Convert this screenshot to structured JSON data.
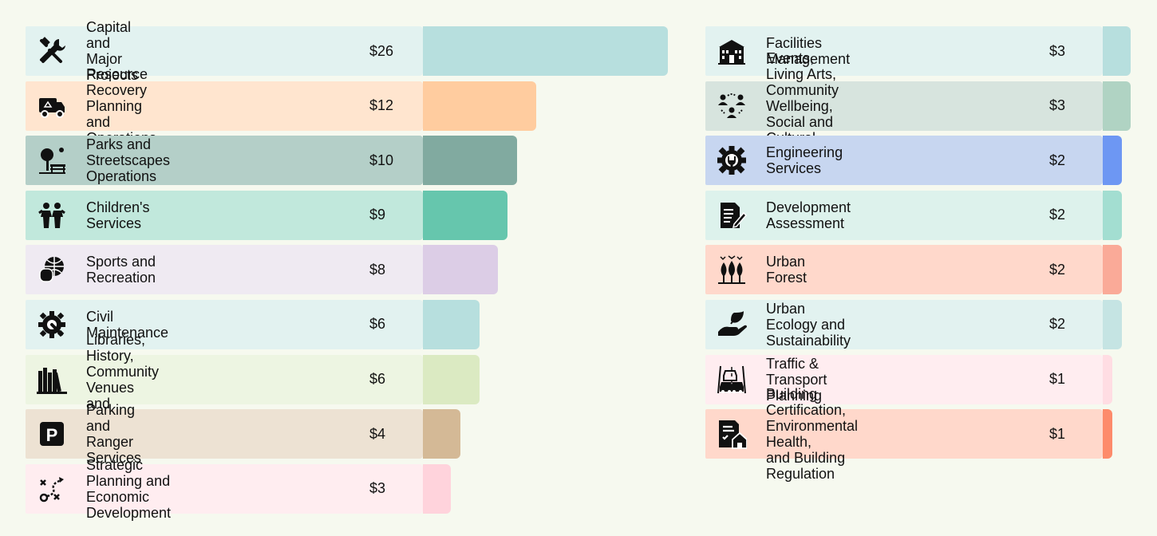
{
  "chart_data": {
    "type": "bar",
    "orientation": "horizontal",
    "title": "",
    "xlabel": "",
    "ylabel": "",
    "panels": [
      {
        "items": [
          {
            "label": "Capital and Major Projects",
            "value": 26,
            "value_label": "$26",
            "color": "#b7dfde",
            "bg": "#e2f2f0",
            "icon": "tools-icon"
          },
          {
            "label": "Resource Recovery\nPlanning and Operations",
            "value": 12,
            "value_label": "$12",
            "color": "#ffcc9f",
            "bg": "#ffe5cf",
            "icon": "recycling-truck-icon"
          },
          {
            "label": "Parks and Streetscapes Operations",
            "value": 10,
            "value_label": "$10",
            "color": "#81aaa0",
            "bg": "#b4cfc8",
            "icon": "park-bench-icon"
          },
          {
            "label": "Children's Services",
            "value": 9,
            "value_label": "$9",
            "color": "#66c6ad",
            "bg": "#c1e8dc",
            "icon": "children-icon"
          },
          {
            "label": "Sports and Recreation",
            "value": 8,
            "value_label": "$8",
            "color": "#dccde6",
            "bg": "#efeaf2",
            "icon": "sports-icon"
          },
          {
            "label": "Civil Maintenance",
            "value": 6,
            "value_label": "$6",
            "color": "#b7dfde",
            "bg": "#e2f2f0",
            "icon": "gear-wrench-icon"
          },
          {
            "label": "Libraries, History,\nCommunity Venues and Centres",
            "value": 6,
            "value_label": "$6",
            "color": "#dbeac2",
            "bg": "#edf5e2",
            "icon": "books-icon"
          },
          {
            "label": "Parking and Ranger Services",
            "value": 4,
            "value_label": "$4",
            "color": "#d4b996",
            "bg": "#ede2d3",
            "icon": "parking-icon"
          },
          {
            "label": "Strategic Planning and\nEconomic Development",
            "value": 3,
            "value_label": "$3",
            "color": "#ffd3dc",
            "bg": "#ffedf0",
            "icon": "strategy-icon"
          }
        ]
      },
      {
        "items": [
          {
            "label": "Facilities Management",
            "value": 3,
            "value_label": "$3",
            "color": "#b7dfde",
            "bg": "#e2f2f0",
            "icon": "building-icon"
          },
          {
            "label": "Events, Living Arts, Community Wellbeing,\nSocial and Cultural Planning",
            "value": 3,
            "value_label": "$3",
            "color": "#b0d3c3",
            "bg": "#d7e4de",
            "icon": "community-icon"
          },
          {
            "label": "Engineering Services",
            "value": 2,
            "value_label": "$2",
            "color": "#6d97f3",
            "bg": "#c7d6f0",
            "icon": "engineering-gear-icon"
          },
          {
            "label": "Development Assessment",
            "value": 2,
            "value_label": "$2",
            "color": "#a3ded1",
            "bg": "#ddf2ec",
            "icon": "document-edit-icon"
          },
          {
            "label": "Urban Forest",
            "value": 2,
            "value_label": "$2",
            "color": "#faaa98",
            "bg": "#ffd8cb",
            "icon": "trees-icon"
          },
          {
            "label": "Urban Ecology and Sustainability",
            "value": 2,
            "value_label": "$2",
            "color": "#c5e4e3",
            "bg": "#e2f2f0",
            "icon": "hand-leaf-icon"
          },
          {
            "label": "Traffic & Transport Planning",
            "value": 1,
            "value_label": "$1",
            "color": "#ffdde3",
            "bg": "#ffedf0",
            "icon": "traffic-icon"
          },
          {
            "label": "Building Certification, Environmental Health,\nand Building Regulation",
            "value": 1,
            "value_label": "$1",
            "color": "#fd8b6b",
            "bg": "#ffd8cb",
            "icon": "certification-icon"
          }
        ]
      }
    ]
  }
}
